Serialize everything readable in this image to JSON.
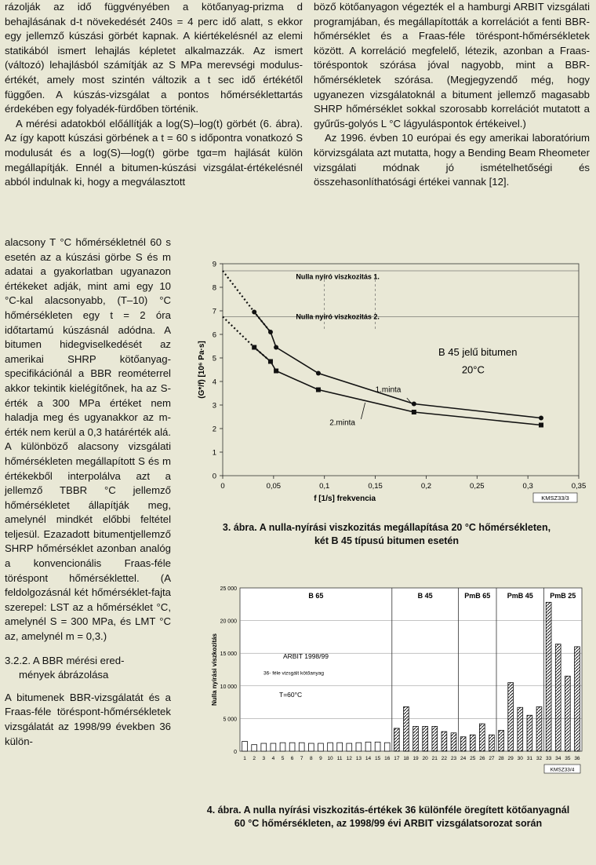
{
  "left_top_paragraphs": [
    "rázolják az idő függvényében a kötőanyag-prizma d behajlásának d-t növekedését 240s = 4 perc idő alatt, s ekkor egy jellemző kúszási görbét kapnak. A kiértékelésnél az elemi statikából ismert lehajlás képletet alkalmazzák. Az ismert (változó) lehajlásból számítják az S MPa merevségi modulus-értékét, amely most szintén változik a t sec idő értékétől függően. A kúszás-vizsgálat a pontos hőmérséklettartás érdekében egy folyadék-fürdőben történik.",
    "A mérési adatokból előállítják a log(S)–log(t) görbét (6. ábra). Az így kapott kúszási görbének a t = 60 s időpontra vonatkozó S modulusát és a log(S)—log(t) görbe tgα=m hajlását külön megállapítják. Ennél a bitumen-kúszási vizsgálat-értékelésnél abból indulnak ki, hogy a megválasztott"
  ],
  "left_narrow_paragraph": "alacsony T °C hőmérsékletnél 60 s esetén az a kúszási görbe S és m adatai a gyakorlatban ugyanazon értékeket adják, mint ami egy 10 °C-kal alacsonyabb, (T–10) °C hőmérsékleten egy t = 2 óra időtartamú kúszásnál adódna. A bitumen hidegviselkedését az amerikai SHRP kötőanyag-specifikációnál a BBR reométerrel akkor tekintik kielégítőnek, ha az S-érték a 300 MPa értéket nem haladja meg és ugyanakkor az m-érték nem kerül a 0,3 határérték alá. A különböző alacsony vizsgálati hőmérsékleten megállapított S és m értékekből interpolálva azt a jellemző TBBR °C jellemző hőmérsékletet állapítják meg, amelynél mindkét előbbi feltétel teljesül. Ezazadott bitumentjellemző SHRP hőmérséklet azonban analóg a konvencionális Fraas-féle töréspont hőmérséklettel. (A feldolgozásnál két hőmérséklet-fajta szerepel: LST az a hőmérséklet °C, amelynél S = 300 MPa, és LMT °C az, amelynél m = 0,3.)",
  "section_title_1": "3.2.2. A BBR mérési ered-",
  "section_title_2": "mények ábrázolása",
  "left_bottom_paragraph": "A bitumenek BBR-vizsgálatát és a Fraas-féle töréspont-hőmérsékletek vizsgálatát az 1998/99 években 36 külön-",
  "right_top_paragraphs": [
    "böző kötőanyagon végezték el a hamburgi ARBIT vizsgálati programjában, és megállapították a korrelációt a fenti BBR-hőmérséklet és a Fraas-féle töréspont-hőmérsékletek között. A korreláció megfelelő, létezik, azonban a Fraas-töréspontok szórása jóval nagyobb, mint a BBR-hőmérsékletek szórása. (Megjegyzendő még, hogy ugyanezen vizsgálatoknál a bitument jellemző magasabb SHRP hőmérséklet sokkal szorosabb korrelációt mutatott a gyűrűs-golyós L °C lágyuláspontok értékeivel.)",
    "Az 1996. évben 10 európai és egy amerikai laboratórium körvizsgálata azt mutatta, hogy a Bending Beam Rheometer vizsgálati módnak jó ismételhetőségi és összehasonlíthatósági értékei vannak [12]."
  ],
  "fig3": {
    "caption_line1": "3. ábra. A nulla-nyírási viszkozitás megállapítása 20 °C hőmérsékleten,",
    "caption_line2": "két B 45 típusú bitumen esetén",
    "ylabel": "(G*/f) [10⁶ Pa·s]",
    "xlabel": "f [1/s] frekvencia",
    "code": "KMSZ33/3",
    "label_zero1": "Nulla nyíró viszkozitás 1.",
    "label_zero2": "Nulla nyíró viszkozitás 2.",
    "annotation_title": "B 45 jelű bitumen",
    "annotation_temp": "20°C",
    "label_minta1": "1.minta",
    "label_minta2": "2.minta"
  },
  "fig4": {
    "caption_line1": "4. ábra. A nulla nyírási viszkozitás-értékek 36 különféle öregített kötőanyagnál",
    "caption_line2": "60 °C hőmérsékleten, az 1998/99 évi ARBIT vizsgálatsorozat során",
    "ylabel": "Nulla nyírási viszkozitás",
    "code": "KMSZ33/4",
    "text_arbit": "ARBIT 1998/99",
    "text_36": "36- féle vizsgált kötőanyag",
    "text_temp": "T=60°C",
    "groups": [
      "B 65",
      "B 45",
      "PmB 65",
      "PmB 45",
      "PmB 25"
    ]
  },
  "chart_data": [
    {
      "type": "line",
      "title": "",
      "xlabel": "f [1/s] frekvencia",
      "ylabel": "(G*/f) [10⁶ Pa·s]",
      "xlim": [
        0,
        0.35
      ],
      "ylim": [
        0,
        9
      ],
      "xticks": [
        "0",
        "0,05",
        "0,1",
        "0,15",
        "0,2",
        "0,25",
        "0,3",
        "0,35"
      ],
      "yticks": [
        "0",
        "1",
        "2",
        "3",
        "4",
        "5",
        "6",
        "7",
        "8",
        "9"
      ],
      "series": [
        {
          "name": "1.minta",
          "x": [
            0.031,
            0.047,
            0.0525,
            0.094,
            0.188,
            0.313
          ],
          "y": [
            6.95,
            6.1,
            5.45,
            4.35,
            3.05,
            2.45
          ]
        },
        {
          "name": "2.minta",
          "x": [
            0.031,
            0.047,
            0.0525,
            0.094,
            0.188,
            0.313
          ],
          "y": [
            5.45,
            4.85,
            4.45,
            3.65,
            2.7,
            2.15
          ]
        }
      ],
      "extrapolation": [
        {
          "x": [
            0,
            0.031,
            0.047
          ],
          "y": [
            8.7,
            6.95,
            6.1
          ]
        },
        {
          "x": [
            0,
            0.031,
            0.047
          ],
          "y": [
            6.75,
            5.45,
            4.85
          ]
        }
      ],
      "reference_lines": [
        8.7,
        6.75
      ]
    },
    {
      "type": "bar",
      "title": "",
      "xlabel": "",
      "ylabel": "Nulla nyírási viszkozitás",
      "ylim": [
        0,
        25000
      ],
      "yticks": [
        "0",
        "5 000",
        "10 000",
        "15 000",
        "20 000",
        "25 000"
      ],
      "categories": [
        "1",
        "2",
        "3",
        "4",
        "5",
        "6",
        "7",
        "8",
        "9",
        "10",
        "11",
        "12",
        "13",
        "14",
        "15",
        "16",
        "17",
        "18",
        "19",
        "20",
        "21",
        "22",
        "23",
        "24",
        "25",
        "26",
        "27",
        "28",
        "29",
        "30",
        "31",
        "32",
        "33",
        "34",
        "35",
        "36"
      ],
      "values": [
        1500,
        1000,
        1200,
        1200,
        1300,
        1300,
        1300,
        1200,
        1200,
        1300,
        1300,
        1200,
        1300,
        1400,
        1400,
        1300,
        3500,
        6800,
        3800,
        3800,
        3800,
        3000,
        2800,
        2200,
        2500,
        4200,
        2500,
        3200,
        10500,
        6700,
        5500,
        6800,
        22800,
        16400,
        11500,
        16000
      ],
      "groups": [
        {
          "name": "B 65",
          "from": 1,
          "to": 16
        },
        {
          "name": "B 45",
          "from": 17,
          "to": 23
        },
        {
          "name": "PmB 65",
          "from": 24,
          "to": 27
        },
        {
          "name": "PmB 45",
          "from": 28,
          "to": 32
        },
        {
          "name": "PmB 25",
          "from": 33,
          "to": 36
        }
      ]
    }
  ]
}
